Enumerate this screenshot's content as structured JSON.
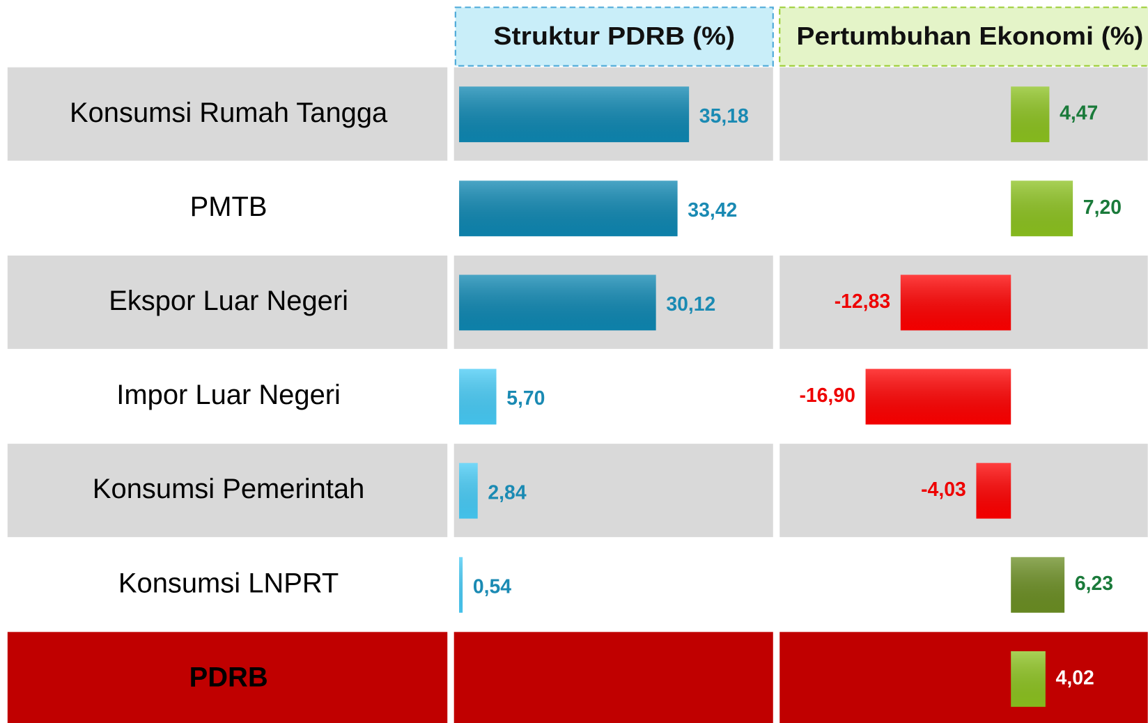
{
  "chart_data": {
    "type": "bar",
    "categories": [
      "Konsumsi Rumah Tangga",
      "PMTB",
      "Ekspor Luar Negeri",
      "Impor Luar Negeri",
      "Konsumsi Pemerintah",
      "Konsumsi LNPRT",
      "PDRB"
    ],
    "series": [
      {
        "name": "Struktur PDRB (%)",
        "values": [
          35.18,
          33.42,
          30.12,
          5.7,
          2.84,
          0.54,
          null
        ],
        "value_labels": [
          "35,18",
          "33,42",
          "30,12",
          "5,70",
          "2,84",
          "0,54",
          null
        ],
        "colors": [
          "#0e87b2",
          "#0e87b2",
          "#0e87b2",
          "#47cbf6",
          "#47cbf6",
          "#47cbf6",
          null
        ]
      },
      {
        "name": "Pertumbuhan Ekonomi (%)",
        "values": [
          4.47,
          7.2,
          -12.83,
          -16.9,
          -4.03,
          6.23,
          4.02
        ],
        "value_labels": [
          "4,47",
          "7,20",
          "-12,83",
          "-16,90",
          "-4,03",
          "6,23",
          "4,02"
        ],
        "colors": [
          "#8cc21f",
          "#8cc21f",
          "#ff0000",
          "#ff0000",
          "#ff0000",
          "#6b8e23",
          "#8cc21f"
        ]
      }
    ]
  }
}
